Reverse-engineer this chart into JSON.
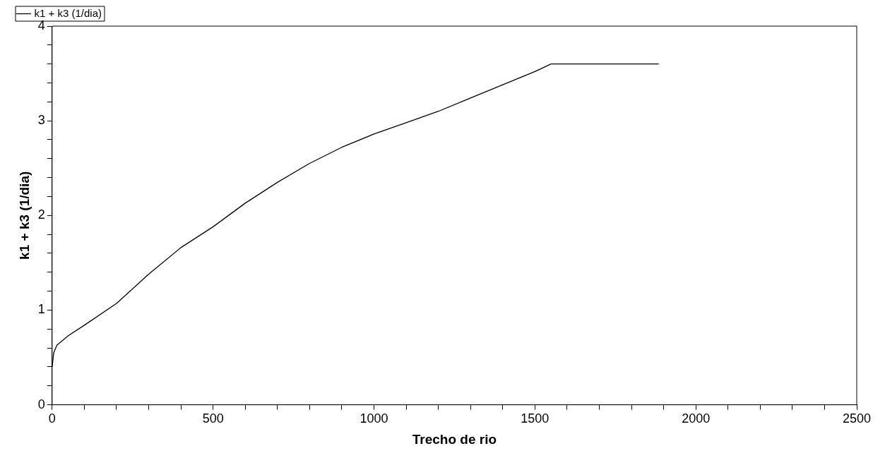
{
  "chart_data": {
    "type": "line",
    "xlabel": "Trecho de rio",
    "ylabel": "k1 + k3 (1/dia)",
    "series": [
      {
        "name": "k1 + k3 (1/dia)",
        "color": "#000000",
        "x": [
          0,
          5,
          15,
          50,
          100,
          200,
          300,
          400,
          500,
          600,
          700,
          800,
          900,
          1000,
          1100,
          1200,
          1300,
          1400,
          1500,
          1550,
          1885
        ],
        "values": [
          0.4,
          0.55,
          0.63,
          0.73,
          0.84,
          1.07,
          1.38,
          1.66,
          1.88,
          2.13,
          2.35,
          2.55,
          2.72,
          2.86,
          2.98,
          3.1,
          3.24,
          3.38,
          3.52,
          3.6,
          3.6
        ]
      }
    ],
    "xlim": [
      0,
      2500
    ],
    "ylim": [
      0,
      4
    ],
    "xticks": [
      0,
      {
        "value": 100,
        "label": null
      },
      {
        "value": 200,
        "label": null
      },
      {
        "value": 300,
        "label": null
      },
      {
        "value": 400,
        "label": null
      },
      500,
      {
        "value": 600,
        "label": null
      },
      {
        "value": 700,
        "label": null
      },
      {
        "value": 800,
        "label": null
      },
      {
        "value": 900,
        "label": null
      },
      1000,
      {
        "value": 1100,
        "label": null
      },
      {
        "value": 1200,
        "label": null
      },
      {
        "value": 1300,
        "label": null
      },
      {
        "value": 1400,
        "label": null
      },
      1500,
      {
        "value": 1600,
        "label": null
      },
      {
        "value": 1700,
        "label": null
      },
      {
        "value": 1800,
        "label": null
      },
      {
        "value": 1900,
        "label": null
      },
      2000,
      {
        "value": 2100,
        "label": null
      },
      {
        "value": 2200,
        "label": null
      },
      {
        "value": 2300,
        "label": null
      },
      {
        "value": 2400,
        "label": null
      },
      2500
    ],
    "yticks": [
      0,
      {
        "value": 0.2,
        "label": null
      },
      {
        "value": 0.4,
        "label": null
      },
      {
        "value": 0.6,
        "label": null
      },
      {
        "value": 0.8,
        "label": null
      },
      1,
      {
        "value": 1.2,
        "label": null
      },
      {
        "value": 1.4,
        "label": null
      },
      {
        "value": 1.6,
        "label": null
      },
      {
        "value": 1.8,
        "label": null
      },
      2,
      {
        "value": 2.2,
        "label": null
      },
      {
        "value": 2.4,
        "label": null
      },
      {
        "value": 2.6,
        "label": null
      },
      {
        "value": 2.8,
        "label": null
      },
      3,
      {
        "value": 3.2,
        "label": null
      },
      {
        "value": 3.4,
        "label": null
      },
      {
        "value": 3.6,
        "label": null
      },
      {
        "value": 3.8,
        "label": null
      },
      4
    ],
    "grid": false,
    "legend": "top left",
    "marker": "none",
    "line_style": "solid"
  }
}
